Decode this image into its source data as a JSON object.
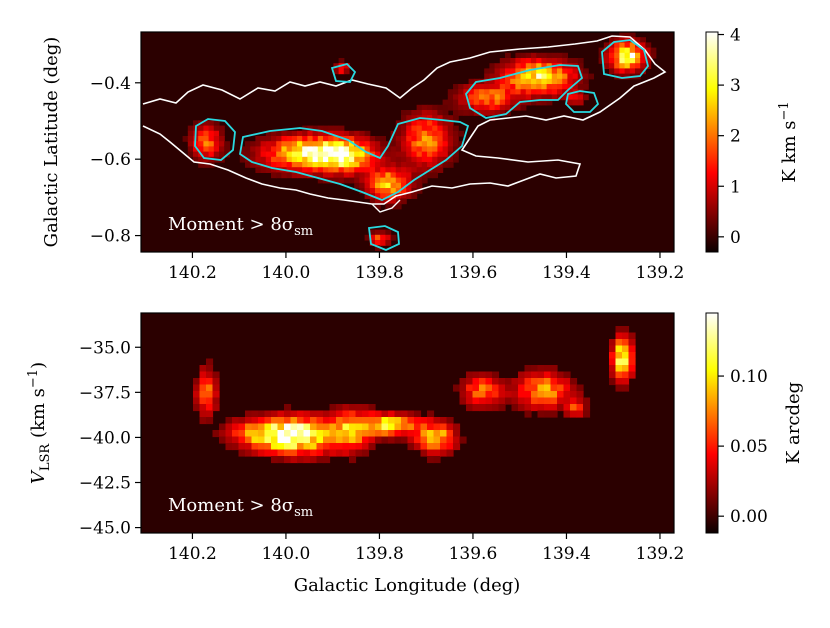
{
  "chart_data": [
    {
      "type": "heatmap",
      "panel": "top",
      "ylabel": "Galactic Latitude (deg)",
      "x_ticks": [
        "140.2",
        "140.0",
        "139.8",
        "139.6",
        "139.4",
        "139.2"
      ],
      "x_tick_values": [
        140.2,
        140.0,
        139.8,
        139.6,
        139.4,
        139.2
      ],
      "xlim": [
        140.31,
        139.17
      ],
      "y_ticks": [
        "−0.4",
        "−0.6",
        "−0.8"
      ],
      "y_tick_values": [
        -0.4,
        -0.6,
        -0.8
      ],
      "ylim": [
        -0.843,
        -0.267
      ],
      "annotation": "Moment > 8σ",
      "annotation_sub": "sm",
      "colorbar": {
        "label_main": "K km s",
        "label_sup": "−1",
        "ticks": [
          "0",
          "1",
          "2",
          "3",
          "4"
        ],
        "tick_values": [
          0,
          1,
          2,
          3,
          4
        ],
        "range": [
          -0.3,
          4.05
        ],
        "colormap": "hot"
      },
      "contours": [
        {
          "name": "white",
          "color": "#ffffff"
        },
        {
          "name": "cyan",
          "color": "#29d9e0"
        }
      ],
      "blobs": [
        {
          "l": 140.17,
          "b": -0.555,
          "peak": 1.9,
          "sl": 0.022,
          "sb": 0.03
        },
        {
          "l": 139.95,
          "b": -0.585,
          "peak": 3.3,
          "sl": 0.065,
          "sb": 0.03
        },
        {
          "l": 139.87,
          "b": -0.59,
          "peak": 2.5,
          "sl": 0.04,
          "sb": 0.03
        },
        {
          "l": 139.78,
          "b": -0.665,
          "peak": 2.6,
          "sl": 0.03,
          "sb": 0.028
        },
        {
          "l": 139.7,
          "b": -0.55,
          "peak": 2.2,
          "sl": 0.035,
          "sb": 0.045
        },
        {
          "l": 139.88,
          "b": -0.36,
          "peak": 1.6,
          "sl": 0.01,
          "sb": 0.01
        },
        {
          "l": 139.8,
          "b": -0.81,
          "peak": 1.8,
          "sl": 0.015,
          "sb": 0.012
        },
        {
          "l": 139.57,
          "b": -0.44,
          "peak": 2.0,
          "sl": 0.04,
          "sb": 0.025
        },
        {
          "l": 139.46,
          "b": -0.385,
          "peak": 3.2,
          "sl": 0.05,
          "sb": 0.03
        },
        {
          "l": 139.38,
          "b": -0.44,
          "peak": 1.3,
          "sl": 0.012,
          "sb": 0.01
        },
        {
          "l": 139.27,
          "b": -0.33,
          "peak": 3.6,
          "sl": 0.025,
          "sb": 0.025
        }
      ]
    },
    {
      "type": "heatmap",
      "panel": "bottom",
      "xlabel": "Galactic Longitude (deg)",
      "ylabel_main": "V",
      "ylabel_sub": "LSR",
      "ylabel_unit": " (km s",
      "ylabel_sup": "−1",
      "ylabel_close": ")",
      "x_ticks": [
        "140.2",
        "140.0",
        "139.8",
        "139.6",
        "139.4",
        "139.2"
      ],
      "x_tick_values": [
        140.2,
        140.0,
        139.8,
        139.6,
        139.4,
        139.2
      ],
      "xlim": [
        140.31,
        139.17
      ],
      "y_ticks": [
        "−35.0",
        "−37.5",
        "−40.0",
        "−42.5",
        "−45.0"
      ],
      "y_tick_values": [
        -35.0,
        -37.5,
        -40.0,
        -42.5,
        -45.0
      ],
      "ylim": [
        -45.3,
        -33.1
      ],
      "annotation": "Moment > 8σ",
      "annotation_sub": "sm",
      "colorbar": {
        "label": "K arcdeg",
        "ticks": [
          "0.00",
          "0.05",
          "0.10"
        ],
        "tick_values": [
          0.0,
          0.05,
          0.1
        ],
        "range": [
          -0.012,
          0.145
        ],
        "colormap": "hot"
      },
      "blobs": [
        {
          "l": 140.17,
          "v": -37.5,
          "peak": 0.07,
          "sl": 0.015,
          "sv": 0.9
        },
        {
          "l": 139.97,
          "v": -39.9,
          "peak": 0.12,
          "sl": 0.05,
          "sv": 0.7
        },
        {
          "l": 140.05,
          "v": -39.8,
          "peak": 0.08,
          "sl": 0.05,
          "sv": 0.6
        },
        {
          "l": 139.86,
          "v": -39.6,
          "peak": 0.08,
          "sl": 0.03,
          "sv": 0.8
        },
        {
          "l": 139.78,
          "v": -39.3,
          "peak": 0.11,
          "sl": 0.04,
          "sv": 0.4
        },
        {
          "l": 139.68,
          "v": -40.0,
          "peak": 0.09,
          "sl": 0.03,
          "sv": 0.6
        },
        {
          "l": 139.58,
          "v": -37.4,
          "peak": 0.07,
          "sl": 0.03,
          "sv": 0.6
        },
        {
          "l": 139.45,
          "v": -37.4,
          "peak": 0.08,
          "sl": 0.04,
          "sv": 0.7
        },
        {
          "l": 139.38,
          "v": -38.4,
          "peak": 0.05,
          "sl": 0.015,
          "sv": 0.4
        },
        {
          "l": 139.28,
          "v": -35.6,
          "peak": 0.12,
          "sl": 0.015,
          "sv": 0.8
        }
      ]
    }
  ]
}
